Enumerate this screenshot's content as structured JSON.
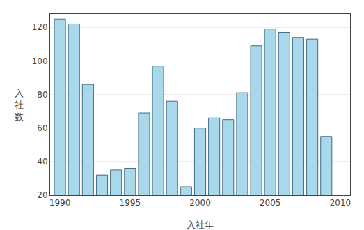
{
  "chart_data": {
    "type": "bar",
    "x": [
      1990,
      1991,
      1992,
      1993,
      1994,
      1995,
      1996,
      1997,
      1998,
      1999,
      2000,
      2001,
      2002,
      2003,
      2004,
      2005,
      2006,
      2007,
      2008,
      2009
    ],
    "values": [
      125,
      122,
      86,
      32,
      35,
      36,
      69,
      97,
      76,
      25,
      60,
      66,
      65,
      81,
      109,
      119,
      117,
      114,
      113,
      55
    ],
    "color": "#a8d8ea",
    "xlabel": "入社年",
    "ylabel": "入社数",
    "xlim": [
      1989.3,
      2010.7
    ],
    "xticks": [
      1990,
      1995,
      2000,
      2005,
      2010
    ],
    "ylim": [
      20,
      128
    ],
    "yticks": [
      20,
      40,
      60,
      80,
      100,
      120
    ],
    "grid": true
  }
}
